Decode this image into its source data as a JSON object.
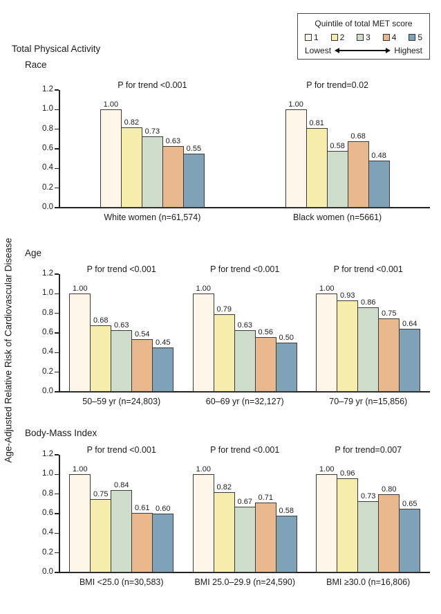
{
  "figure": {
    "title": "Total Physical Activity",
    "ylabel": "Age-Adjusted Relative Risk of Cardiovascular Disease"
  },
  "legend": {
    "title": "Quintile of total MET score",
    "lowest": "Lowest",
    "highest": "Highest",
    "items": [
      {
        "label": "1",
        "color": "#fdf6e9"
      },
      {
        "label": "2",
        "color": "#f6ecab"
      },
      {
        "label": "3",
        "color": "#cfdecb"
      },
      {
        "label": "4",
        "color": "#eab88d"
      },
      {
        "label": "5",
        "color": "#7ea2b8"
      }
    ]
  },
  "chart_data": [
    {
      "type": "bar",
      "section": "Race",
      "ylim": [
        0,
        1.2
      ],
      "yticks": [
        0,
        0.2,
        0.4,
        0.6,
        0.8,
        1.0,
        1.2
      ],
      "legend_title": "Quintile of total MET score",
      "quintiles": [
        "1",
        "2",
        "3",
        "4",
        "5"
      ],
      "groups": [
        {
          "label": "White women (n=61,574)",
          "p_for_trend": "P for trend <0.001",
          "values": [
            1.0,
            0.82,
            0.73,
            0.63,
            0.55
          ]
        },
        {
          "label": "Black women (n=5661)",
          "p_for_trend": "P for trend=0.02",
          "values": [
            1.0,
            0.81,
            0.58,
            0.68,
            0.48
          ]
        }
      ]
    },
    {
      "type": "bar",
      "section": "Age",
      "ylim": [
        0,
        1.2
      ],
      "yticks": [
        0,
        0.2,
        0.4,
        0.6,
        0.8,
        1.0,
        1.2
      ],
      "quintiles": [
        "1",
        "2",
        "3",
        "4",
        "5"
      ],
      "groups": [
        {
          "label": "50–59 yr (n=24,803)",
          "p_for_trend": "P for trend <0.001",
          "values": [
            1.0,
            0.68,
            0.63,
            0.54,
            0.45
          ]
        },
        {
          "label": "60–69 yr (n=32,127)",
          "p_for_trend": "P for trend <0.001",
          "values": [
            1.0,
            0.79,
            0.63,
            0.56,
            0.5
          ]
        },
        {
          "label": "70–79 yr (n=15,856)",
          "p_for_trend": "P for trend <0.001",
          "values": [
            1.0,
            0.93,
            0.86,
            0.75,
            0.64
          ]
        }
      ]
    },
    {
      "type": "bar",
      "section": "Body-Mass Index",
      "ylim": [
        0,
        1.2
      ],
      "yticks": [
        0,
        0.2,
        0.4,
        0.6,
        0.8,
        1.0,
        1.2
      ],
      "quintiles": [
        "1",
        "2",
        "3",
        "4",
        "5"
      ],
      "groups": [
        {
          "label": "BMI <25.0 (n=30,583)",
          "p_for_trend": "P for trend <0.001",
          "values": [
            1.0,
            0.75,
            0.84,
            0.61,
            0.6
          ]
        },
        {
          "label": "BMI 25.0–29.9 (n=24,590)",
          "p_for_trend": "P for trend <0.001",
          "values": [
            1.0,
            0.82,
            0.67,
            0.71,
            0.58
          ]
        },
        {
          "label": "BMI ≥30.0 (n=16,806)",
          "p_for_trend": "P for trend=0.007",
          "values": [
            1.0,
            0.96,
            0.73,
            0.8,
            0.65
          ]
        }
      ]
    }
  ]
}
